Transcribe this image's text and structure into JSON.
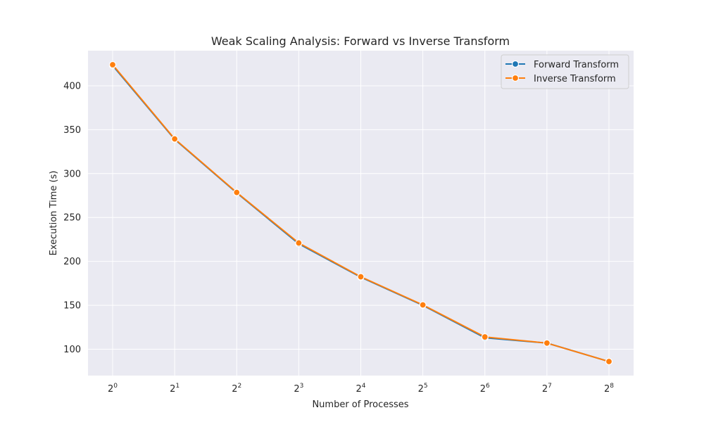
{
  "chart_data": {
    "type": "line",
    "title": "Weak Scaling Analysis: Forward vs Inverse Transform",
    "xlabel": "Number of Processes",
    "ylabel": "Execution Time (s)",
    "x_scale": "log2",
    "x": [
      1,
      2,
      4,
      8,
      16,
      32,
      64,
      128,
      256
    ],
    "x_tick_labels": [
      {
        "base": "2",
        "exp": "0"
      },
      {
        "base": "2",
        "exp": "1"
      },
      {
        "base": "2",
        "exp": "2"
      },
      {
        "base": "2",
        "exp": "3"
      },
      {
        "base": "2",
        "exp": "4"
      },
      {
        "base": "2",
        "exp": "5"
      },
      {
        "base": "2",
        "exp": "6"
      },
      {
        "base": "2",
        "exp": "7"
      },
      {
        "base": "2",
        "exp": "8"
      }
    ],
    "y_ticks": [
      100,
      150,
      200,
      250,
      300,
      350,
      400
    ],
    "ylim": [
      70,
      440
    ],
    "grid": true,
    "legend_position": "top-right",
    "series": [
      {
        "name": "Forward Transform",
        "color": "#1f77b4",
        "marker": "circle",
        "values": [
          423,
          339,
          278,
          220,
          182,
          150,
          113,
          107,
          86
        ]
      },
      {
        "name": "Inverse Transform",
        "color": "#ff7f0e",
        "marker": "circle",
        "values": [
          424,
          339.5,
          278.5,
          221,
          182.5,
          150.5,
          114,
          107,
          86
        ]
      }
    ],
    "colors": {
      "plot_background": "#eaeaf2",
      "grid": "#ffffff"
    }
  }
}
